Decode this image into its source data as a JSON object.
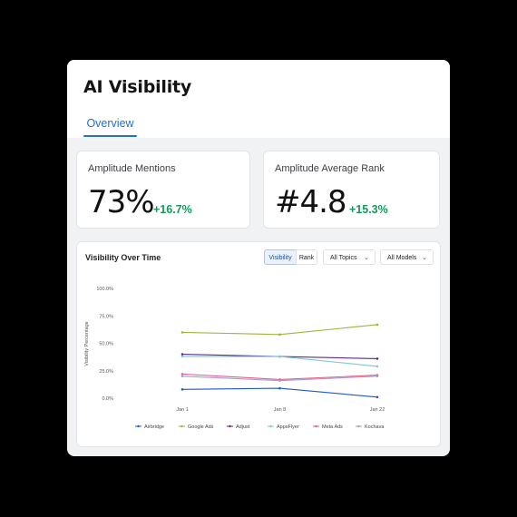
{
  "app": {
    "title": "AI Visibility"
  },
  "tabs": [
    {
      "label": "Overview"
    }
  ],
  "metrics": [
    {
      "label": "Amplitude Mentions",
      "value": "73%",
      "delta": "+16.7%"
    },
    {
      "label": "Amplitude Average Rank",
      "value": "#4.8",
      "delta": "+15.3%"
    }
  ],
  "controls": {
    "visibility": "Visibility",
    "rank": "Rank",
    "topics": "All Topics",
    "models": "All Models"
  },
  "colors": {
    "accent": "#1f6fd6",
    "positive": "#17985a"
  },
  "chart_data": {
    "type": "line",
    "title": "Visibility Over Time",
    "ylabel": "Visibility Percentage",
    "xlabel": "",
    "categories": [
      "Jan 1",
      "Jan 8",
      "Jan 22"
    ],
    "yticks": [
      "100.0%",
      "75.0%",
      "50.0%",
      "25.0%",
      "0.0%"
    ],
    "ylim": [
      0,
      100
    ],
    "grid": false,
    "legend_position": "bottom",
    "series": [
      {
        "name": "Airbridge",
        "values": [
          8,
          9,
          1
        ],
        "color": "#1f58c9"
      },
      {
        "name": "Google Ads",
        "values": [
          60,
          58,
          67
        ],
        "color": "#9ab53a"
      },
      {
        "name": "Adjust",
        "values": [
          40,
          38,
          36
        ],
        "color": "#5e2a8c"
      },
      {
        "name": "AppsFlyer",
        "values": [
          38,
          38,
          29
        ],
        "color": "#7cc9d8"
      },
      {
        "name": "Meta Ads",
        "values": [
          22,
          17,
          21
        ],
        "color": "#e0608a"
      },
      {
        "name": "Kochava",
        "values": [
          20,
          16,
          20
        ],
        "color": "#a99bd9"
      }
    ]
  }
}
